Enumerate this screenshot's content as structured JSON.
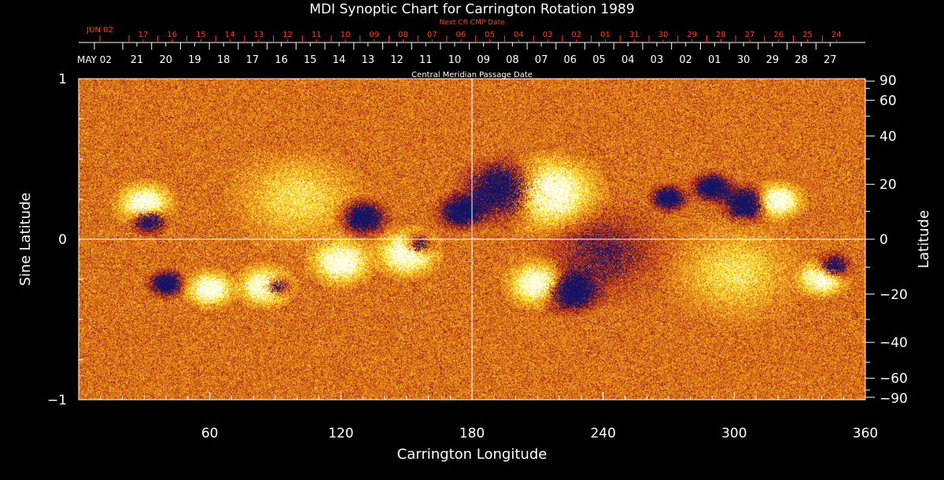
{
  "chart_data": {
    "type": "heatmap",
    "title": "MDI Synoptic Chart for Carrington Rotation 1989",
    "xlabel": "Carrington Longitude",
    "ylabel_left": "Sine Latitude",
    "ylabel_right": "Latitude",
    "xlim": [
      0,
      360
    ],
    "ylim_sine": [
      -1,
      1
    ],
    "x_ticks": [
      "60",
      "120",
      "180",
      "240",
      "300",
      "360"
    ],
    "y_ticks_left": [
      "1",
      "0",
      "−1"
    ],
    "y_ticks_right": [
      "90",
      "60",
      "40",
      "20",
      "0",
      "−20",
      "−40",
      "−60",
      "−90"
    ],
    "y_ticks_right_values": [
      90,
      60,
      40,
      20,
      0,
      -20,
      -40,
      -60,
      -90
    ],
    "top_axis_red": {
      "label": "Next CR CMP Date",
      "start_label": "JUN 02",
      "ticks": [
        "17",
        "16",
        "15",
        "14",
        "13",
        "12",
        "11",
        "10",
        "09",
        "08",
        "07",
        "06",
        "05",
        "04",
        "03",
        "02",
        "01",
        "31",
        "30",
        "29",
        "28",
        "27",
        "26",
        "25",
        "24"
      ]
    },
    "top_axis_white": {
      "label": "Central Meridian Passage Date",
      "start_label": "MAY 02",
      "ticks": [
        "21",
        "20",
        "19",
        "18",
        "17",
        "16",
        "15",
        "14",
        "13",
        "12",
        "11",
        "10",
        "09",
        "08",
        "07",
        "06",
        "05",
        "04",
        "03",
        "02",
        "01",
        "30",
        "29",
        "28",
        "27"
      ]
    },
    "colors": {
      "background": "#000000",
      "field_neutral": "#e8501a",
      "positive": "#ffffff",
      "negative": "#101060",
      "red_axis": "#ff4010"
    }
  }
}
